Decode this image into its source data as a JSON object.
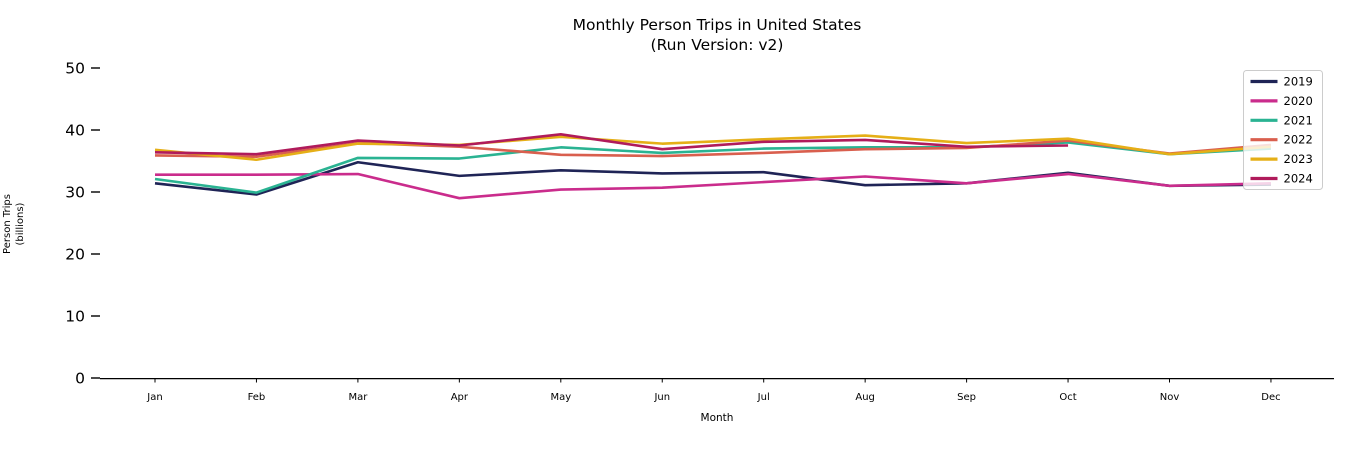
{
  "chart_data": {
    "type": "line",
    "title_lines": [
      "Monthly Person Trips in United States",
      "(Run Version: v2)"
    ],
    "xlabel": "Month",
    "ylabel_lines": [
      "Person Trips",
      "(billions)"
    ],
    "categories": [
      "Jan",
      "Feb",
      "Mar",
      "Apr",
      "May",
      "Jun",
      "Jul",
      "Aug",
      "Sep",
      "Oct",
      "Nov",
      "Dec"
    ],
    "yticks": [
      0,
      10,
      20,
      30,
      40,
      50
    ],
    "ylim": [
      0,
      50
    ],
    "grid": false,
    "legend_position": "upper right",
    "legend_labels": [
      "2019",
      "2020",
      "2021",
      "2022",
      "2023",
      "2024"
    ],
    "series": [
      {
        "name": "2019",
        "color": "#1f2456",
        "values": [
          31.4,
          29.6,
          34.8,
          32.6,
          33.5,
          33.0,
          33.2,
          31.1,
          31.4,
          33.1,
          31.0,
          31.2
        ]
      },
      {
        "name": "2020",
        "color": "#ca2c8c",
        "values": [
          32.8,
          32.8,
          32.9,
          29.0,
          30.4,
          30.7,
          31.6,
          32.5,
          31.4,
          32.9,
          31.0,
          31.4
        ]
      },
      {
        "name": "2021",
        "color": "#2ab392",
        "values": [
          32.1,
          29.9,
          35.5,
          35.4,
          37.2,
          36.3,
          37.0,
          37.2,
          37.2,
          38.0,
          36.1,
          37.0
        ]
      },
      {
        "name": "2022",
        "color": "#d95f4e",
        "values": [
          35.9,
          35.7,
          37.9,
          37.3,
          36.0,
          35.8,
          36.3,
          36.9,
          37.1,
          38.3,
          36.2,
          37.6
        ]
      },
      {
        "name": "2023",
        "color": "#e5af17",
        "values": [
          36.8,
          35.2,
          37.8,
          37.6,
          38.9,
          37.8,
          38.5,
          39.1,
          37.9,
          38.6,
          36.1,
          37.3
        ]
      },
      {
        "name": "2024",
        "color": "#b01b5b",
        "values": [
          36.4,
          36.1,
          38.3,
          37.5,
          39.3,
          36.9,
          38.1,
          38.4,
          37.3,
          37.5,
          null,
          null
        ]
      }
    ]
  }
}
